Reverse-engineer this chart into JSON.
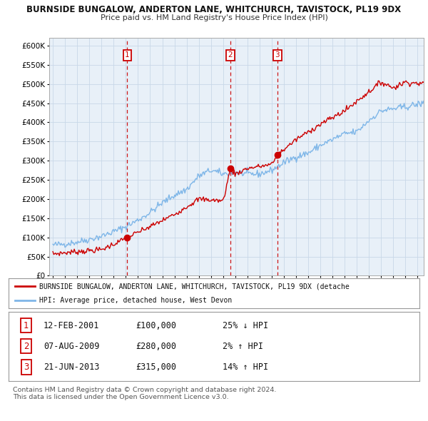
{
  "title1": "BURNSIDE BUNGALOW, ANDERTON LANE, WHITCHURCH, TAVISTOCK, PL19 9DX",
  "title2": "Price paid vs. HM Land Registry's House Price Index (HPI)",
  "ylim": [
    0,
    620000
  ],
  "yticks": [
    0,
    50000,
    100000,
    150000,
    200000,
    250000,
    300000,
    350000,
    400000,
    450000,
    500000,
    550000,
    600000
  ],
  "sale_year_nums": [
    2001.12,
    2009.6,
    2013.47
  ],
  "sale_prices": [
    100000,
    280000,
    315000
  ],
  "sale_labels": [
    "1",
    "2",
    "3"
  ],
  "hpi_color": "#7EB6E8",
  "price_color": "#CC0000",
  "chart_bg": "#E8F0F8",
  "legend_price_label": "BURNSIDE BUNGALOW, ANDERTON LANE, WHITCHURCH, TAVISTOCK, PL19 9DX (detache",
  "legend_hpi_label": "HPI: Average price, detached house, West Devon",
  "table_rows": [
    [
      "1",
      "12-FEB-2001",
      "£100,000",
      "25% ↓ HPI"
    ],
    [
      "2",
      "07-AUG-2009",
      "£280,000",
      "2% ↑ HPI"
    ],
    [
      "3",
      "21-JUN-2013",
      "£315,000",
      "14% ↑ HPI"
    ]
  ],
  "footer_text": "Contains HM Land Registry data © Crown copyright and database right 2024.\nThis data is licensed under the Open Government Licence v3.0.",
  "background_color": "#ffffff",
  "grid_color": "#c8d8e8",
  "vline_color": "#CC0000",
  "xstart": 1995.0,
  "xend": 2025.5
}
